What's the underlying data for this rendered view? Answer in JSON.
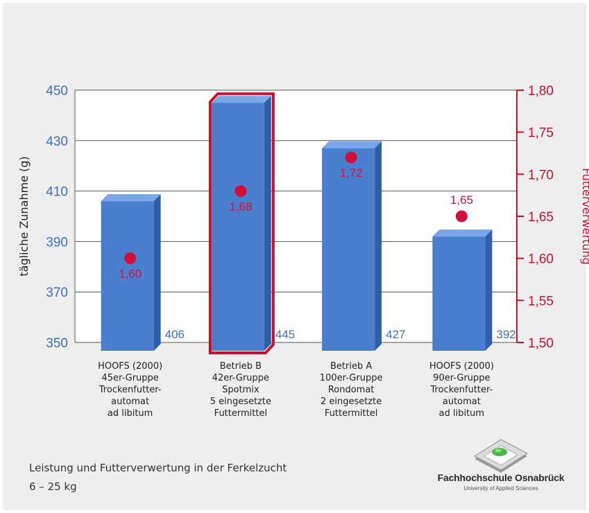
{
  "caption": {
    "line1": "Leistung und Futterverwertung in der Ferkelzucht",
    "line2": "6 – 25 kg"
  },
  "logo": {
    "name": "Fachhochschule Osnabrück",
    "subtitle": "University of Applied Sciences",
    "icon": "fh-osnabrueck-logo-icon"
  },
  "colors": {
    "bar": "#4a7fd0",
    "bar_top": "#7aa5e6",
    "bar_side": "#2f5fa8",
    "highlight_border": "#c8102e",
    "marker": "#d0103a",
    "left_axis": "#3c6fc4",
    "right_axis": "#c8102e"
  },
  "chart_data": {
    "type": "bar",
    "categories": [
      [
        "HOOFS (2000)",
        "45er-Gruppe",
        "Trockenfutter-",
        "automat",
        "ad libitum"
      ],
      [
        "Betrieb B",
        "42er-Gruppe",
        "Spotmix",
        "5 eingesetzte",
        "Futtermittel"
      ],
      [
        "Betrieb A",
        "100er-Gruppe",
        "Rondomat",
        "2 eingesetzte",
        "Futtermittel"
      ],
      [
        "HOOFS (2000)",
        "90er-Gruppe",
        "Trockenfutter-",
        "automat",
        "ad libitum"
      ]
    ],
    "series": [
      {
        "axis": "left",
        "values": [
          406,
          445,
          427,
          392
        ],
        "value_labels": [
          "406",
          "445",
          "427",
          "392"
        ]
      },
      {
        "axis": "right",
        "values": [
          1.6,
          1.68,
          1.72,
          1.65
        ],
        "value_labels": [
          "1,60",
          "1,68",
          "1,72",
          "1,65"
        ]
      }
    ],
    "highlighted_index": 1,
    "ylabel": "tägliche Zunahme (g)",
    "y2label": "Futterverwertung",
    "ylim": [
      350,
      450
    ],
    "y2lim": [
      1.5,
      1.8
    ],
    "yticks": [
      "350",
      "370",
      "390",
      "410",
      "430",
      "450"
    ],
    "y2ticks": [
      "1,50",
      "1,55",
      "1,60",
      "1,65",
      "1,70",
      "1,75",
      "1,80"
    ],
    "grid": true
  }
}
